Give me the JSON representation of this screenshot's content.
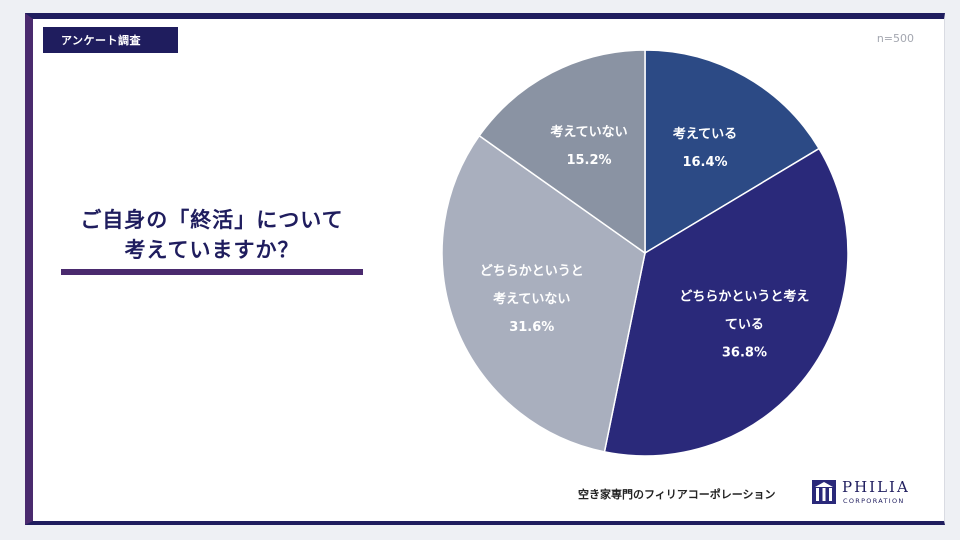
{
  "header": {
    "tag_label": "アンケート調査",
    "sample_size": "n=500"
  },
  "question": {
    "line1": "ご自身の「終活」について",
    "line2": "考えていますか？"
  },
  "footer": {
    "company": "空き家専門のフィリアコーポレーション",
    "logo_name": "PHILIA",
    "logo_sub": "CORPORATION"
  },
  "chart_data": {
    "type": "pie",
    "title": "ご自身の「終活」について考えていますか？",
    "note": "n=500",
    "start_angle_deg": 0,
    "direction": "clockwise",
    "slices": [
      {
        "label_lines": [
          "考えている"
        ],
        "value": 16.4,
        "value_label": "16.4%",
        "color": "#2c4a85"
      },
      {
        "label_lines": [
          "どちらかというと考え",
          "ている"
        ],
        "value": 36.8,
        "value_label": "36.8%",
        "color": "#2a297a"
      },
      {
        "label_lines": [
          "どちらかというと",
          "考えていない"
        ],
        "value": 31.6,
        "value_label": "31.6%",
        "color": "#a9afbe"
      },
      {
        "label_lines": [
          "考えていない"
        ],
        "value": 15.2,
        "value_label": "15.2%",
        "color": "#8a93a3"
      }
    ]
  }
}
